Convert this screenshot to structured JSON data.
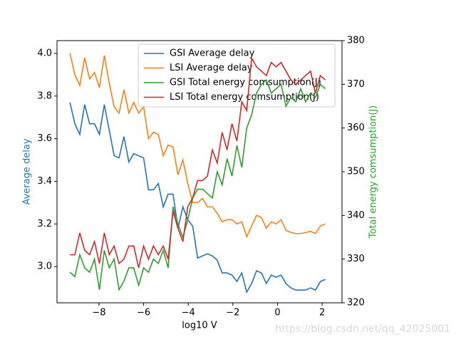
{
  "chart_data": {
    "type": "line",
    "xlabel": "log10 V",
    "ylabel": "Average delay",
    "y2label": "Total energy comsumption(J)",
    "x": [
      -9.3,
      -9.08,
      -8.86,
      -8.64,
      -8.42,
      -8.2,
      -7.98,
      -7.76,
      -7.54,
      -7.32,
      -7.1,
      -6.88,
      -6.66,
      -6.44,
      -6.22,
      -6.0,
      -5.78,
      -5.56,
      -5.34,
      -5.12,
      -4.9,
      -4.68,
      -4.46,
      -4.24,
      -4.02,
      -3.8,
      -3.58,
      -3.36,
      -3.14,
      -2.92,
      -2.7,
      -2.48,
      -2.26,
      -2.04,
      -1.82,
      -1.6,
      -1.38,
      -1.16,
      -0.94,
      -0.72,
      -0.5,
      -0.28,
      -0.06,
      0.16,
      0.38,
      0.6,
      0.82,
      1.04,
      1.26,
      1.48,
      1.7,
      1.92,
      2.14
    ],
    "series": [
      {
        "name": "GSI Average delay",
        "color": "#1f77b4",
        "values": [
          3.77,
          3.67,
          3.62,
          3.76,
          3.67,
          3.67,
          3.62,
          3.76,
          3.64,
          3.52,
          3.51,
          3.61,
          3.49,
          3.53,
          3.52,
          3.51,
          3.36,
          3.36,
          3.39,
          3.28,
          3.34,
          3.34,
          3.18,
          3.28,
          3.22,
          3.19,
          3.04,
          3.05,
          3.06,
          3.05,
          3.03,
          2.97,
          2.97,
          2.96,
          2.93,
          2.97,
          2.88,
          2.92,
          2.98,
          2.97,
          2.92,
          2.96,
          2.95,
          2.96,
          2.92,
          2.9,
          2.89,
          2.89,
          2.89,
          2.9,
          2.89,
          2.93,
          2.94
        ]
      },
      {
        "name": "LSI Average delay",
        "color": "#ff7f0e",
        "values": [
          4.0,
          3.9,
          3.85,
          3.98,
          3.88,
          3.91,
          3.84,
          3.99,
          3.86,
          3.75,
          3.72,
          3.83,
          3.72,
          3.77,
          3.72,
          3.75,
          3.6,
          3.63,
          3.62,
          3.52,
          3.57,
          3.56,
          3.43,
          3.5,
          3.39,
          3.3,
          3.3,
          3.32,
          3.28,
          3.28,
          3.25,
          3.21,
          3.22,
          3.22,
          3.2,
          3.21,
          3.14,
          3.19,
          3.24,
          3.23,
          3.18,
          3.21,
          3.2,
          3.22,
          3.17,
          3.16,
          3.155,
          3.155,
          3.16,
          3.165,
          3.155,
          3.19,
          3.2
        ]
      },
      {
        "name": "GSI Total energy comsumption(J)",
        "color": "#2ca02c",
        "axis": "y2",
        "values": [
          327,
          326,
          331,
          328,
          327,
          330,
          323,
          332,
          328,
          330,
          323,
          325,
          328,
          328,
          324,
          328,
          327,
          330,
          329,
          332,
          328,
          342,
          338,
          335,
          339,
          344,
          346,
          346,
          345,
          344,
          350,
          347,
          353,
          349,
          356,
          351,
          360,
          363,
          368,
          370,
          371,
          368,
          369,
          370,
          365,
          367,
          366,
          369,
          366,
          368,
          367,
          370,
          369
        ]
      },
      {
        "name": "LSI Total energy comsumption(J)",
        "color": "#d62728",
        "axis": "y2",
        "values": [
          331,
          331,
          336,
          332,
          331,
          334,
          329,
          336,
          331,
          333,
          329,
          330,
          333,
          333,
          328,
          333,
          330,
          333,
          331,
          333,
          330,
          341,
          337,
          334,
          342,
          344,
          348,
          348,
          349,
          355,
          352,
          359,
          355,
          361,
          357,
          366,
          364,
          376,
          374,
          373,
          372,
          375,
          374,
          375,
          373,
          371,
          370,
          371,
          372,
          373,
          368,
          372,
          371
        ]
      }
    ],
    "xlim": [
      -9.88,
      2.89
    ],
    "xticks": [
      {
        "value": -8,
        "label": "−8"
      },
      {
        "value": -6,
        "label": "−6"
      },
      {
        "value": -4,
        "label": "−4"
      },
      {
        "value": -2,
        "label": "−2"
      },
      0,
      2
    ],
    "ylim": [
      2.83,
      4.06
    ],
    "yticks": [
      {
        "value": 3,
        "label": "3.0"
      },
      3.2,
      3.4,
      3.6,
      3.8,
      {
        "value": 4,
        "label": "4.0"
      }
    ],
    "y2lim": [
      320,
      380
    ],
    "y2ticks": [
      320,
      330,
      340,
      350,
      360,
      370,
      380
    ],
    "legend": "upper right",
    "annotation": "https://blog.csdn.net/qq_42025001"
  }
}
